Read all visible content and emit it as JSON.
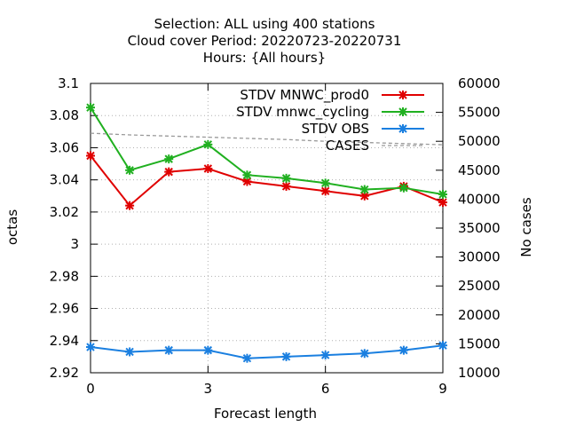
{
  "chart_data": {
    "type": "line",
    "title_lines": [
      "Selection: ALL using   400 stations",
      "Cloud cover   Period: 20220723-20220731",
      "Hours: {All hours}"
    ],
    "xlabel": "Forecast length",
    "ylabel": "octas",
    "y2label": "No cases",
    "x": [
      0,
      1,
      2,
      3,
      4,
      5,
      6,
      7,
      8,
      9
    ],
    "xlim": [
      0,
      9
    ],
    "xticks": [
      0,
      3,
      6,
      9
    ],
    "ylim": [
      2.92,
      3.1
    ],
    "yticks": [
      2.92,
      2.94,
      2.96,
      2.98,
      3,
      3.02,
      3.04,
      3.06,
      3.08,
      3.1
    ],
    "y2lim": [
      10000,
      60000
    ],
    "y2ticks": [
      10000,
      15000,
      20000,
      25000,
      30000,
      35000,
      40000,
      45000,
      50000,
      55000,
      60000
    ],
    "grid": true,
    "legend_position": "top-right",
    "series": [
      {
        "name": "STDV MNWC_prod0",
        "color": "#e00000",
        "axis": "y",
        "style": "line-points",
        "values": [
          3.055,
          3.024,
          3.045,
          3.047,
          3.039,
          3.036,
          3.033,
          3.03,
          3.036,
          3.026
        ]
      },
      {
        "name": "STDV mnwc_cycling",
        "color": "#20b020",
        "axis": "y",
        "style": "line-points",
        "values": [
          3.085,
          3.046,
          3.053,
          3.062,
          3.043,
          3.041,
          3.038,
          3.034,
          3.035,
          3.031
        ]
      },
      {
        "name": "STDV OBS",
        "color": "#1a7fe0",
        "axis": "y",
        "style": "line-points",
        "values": [
          2.936,
          2.933,
          2.934,
          2.934,
          2.929,
          2.93,
          2.931,
          2.932,
          2.934,
          2.937
        ]
      },
      {
        "name": "CASES",
        "color": "#999999",
        "axis": "y2",
        "style": "dashed",
        "values": [
          51400,
          51100,
          50900,
          50700,
          50500,
          50300,
          50000,
          49800,
          49600,
          49400
        ]
      }
    ]
  }
}
